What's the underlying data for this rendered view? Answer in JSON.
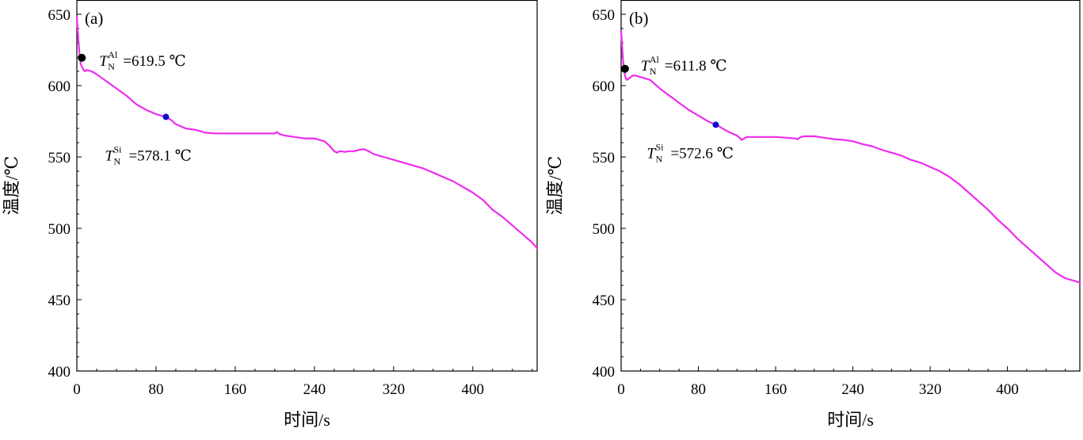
{
  "figure": {
    "panels": [
      "(a)",
      "(b)"
    ],
    "ylabel": "温度/℃",
    "xlabel": "时间/s"
  },
  "chart_data": [
    {
      "type": "line",
      "panel_label": "(a)",
      "xlabel": "时间/s",
      "ylabel": "温度/℃",
      "xlim": [
        0,
        465
      ],
      "ylim": [
        400,
        660
      ],
      "xticks": [
        0,
        80,
        160,
        240,
        320,
        400
      ],
      "yticks": [
        400,
        450,
        500,
        550,
        600,
        650
      ],
      "grid": false,
      "line_color": "#ee2cee",
      "series": [
        {
          "x": [
            0,
            1,
            2,
            3,
            4,
            6,
            8,
            10,
            15,
            20,
            30,
            40,
            50,
            60,
            70,
            80,
            85,
            90,
            95,
            100,
            110,
            120,
            130,
            140,
            150,
            160,
            170,
            180,
            190,
            200,
            202,
            205,
            210,
            220,
            230,
            240,
            245,
            250,
            255,
            260,
            263,
            265,
            268,
            270,
            275,
            280,
            285,
            290,
            295,
            300,
            310,
            320,
            330,
            340,
            350,
            360,
            370,
            380,
            390,
            400,
            410,
            420,
            430,
            440,
            450,
            460,
            465
          ],
          "y": [
            648,
            638,
            628,
            620,
            615,
            612,
            610,
            611,
            610,
            608,
            603,
            598,
            593,
            587,
            583,
            580,
            579,
            578,
            576,
            573,
            570,
            569,
            567,
            566.5,
            566.5,
            566.5,
            566.5,
            566.5,
            566.5,
            566.5,
            567.5,
            566,
            565,
            564,
            563,
            563,
            562,
            561,
            558,
            554,
            553,
            554,
            554,
            553.5,
            554,
            554,
            555,
            555.5,
            554,
            552,
            550,
            548,
            546,
            544,
            542,
            539,
            536,
            533,
            529,
            525,
            520,
            513,
            508,
            502,
            496,
            490,
            486
          ]
        }
      ],
      "annotations": [
        {
          "label": "T",
          "superscript": "Al",
          "subscript": "N",
          "value_text": "=619.5 ℃",
          "x": 5,
          "y": 619.5,
          "marker_color": "#000000"
        },
        {
          "label": "T",
          "superscript": "Si",
          "subscript": "N",
          "value_text": "=578.1 ℃",
          "x": 90,
          "y": 578.1,
          "marker_color": "#1010cc"
        }
      ]
    },
    {
      "type": "line",
      "panel_label": "(b)",
      "xlabel": "时间/s",
      "ylabel": "温度/℃",
      "xlim": [
        0,
        475
      ],
      "ylim": [
        400,
        660
      ],
      "xticks": [
        0,
        80,
        160,
        240,
        320,
        400
      ],
      "yticks": [
        400,
        450,
        500,
        550,
        600,
        650
      ],
      "grid": false,
      "line_color": "#ee2cee",
      "series": [
        {
          "x": [
            0,
            1,
            2,
            3,
            4,
            5,
            6,
            8,
            10,
            12,
            15,
            20,
            30,
            40,
            50,
            60,
            70,
            80,
            90,
            100,
            110,
            120,
            125,
            130,
            140,
            150,
            160,
            170,
            180,
            183,
            186,
            190,
            200,
            210,
            220,
            230,
            240,
            250,
            260,
            270,
            280,
            290,
            300,
            310,
            320,
            330,
            340,
            350,
            360,
            370,
            380,
            390,
            400,
            410,
            420,
            430,
            440,
            450,
            460,
            470,
            475
          ],
          "y": [
            638,
            628,
            618,
            611,
            607,
            605,
            604,
            605,
            606,
            607,
            607,
            606,
            604,
            598,
            593,
            588,
            583,
            579,
            575,
            572,
            568,
            565,
            562,
            564,
            564,
            564,
            564,
            563.5,
            563,
            562.5,
            564,
            564.5,
            564.5,
            563.5,
            562.5,
            562,
            561,
            559,
            557.5,
            555,
            553,
            551,
            548,
            546,
            543,
            540,
            536,
            531,
            525,
            519,
            513,
            506,
            500,
            493,
            487,
            481,
            475,
            469,
            465,
            463,
            462
          ]
        }
      ],
      "annotations": [
        {
          "label": "T",
          "superscript": "Al",
          "subscript": "N",
          "value_text": "=611.8 ℃",
          "x": 4,
          "y": 611.8,
          "marker_color": "#000000"
        },
        {
          "label": "T",
          "superscript": "Si",
          "subscript": "N",
          "value_text": "=572.6 ℃",
          "x": 98,
          "y": 572.6,
          "marker_color": "#1010cc"
        }
      ]
    }
  ]
}
